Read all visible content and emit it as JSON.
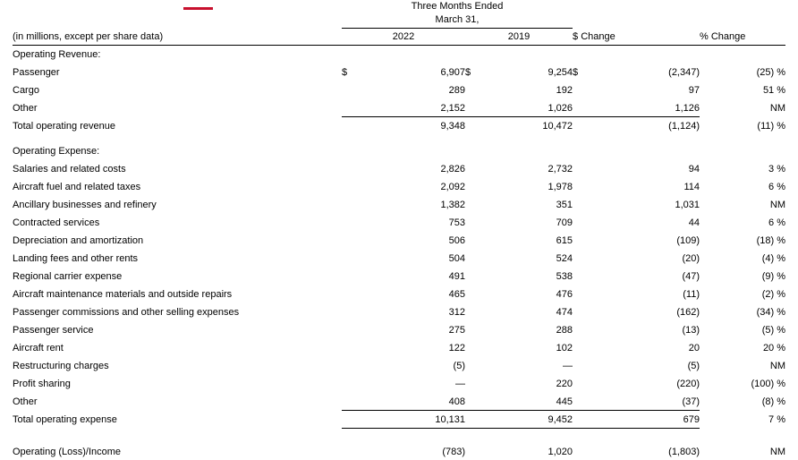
{
  "decor": {
    "accent_color": "#c8102e"
  },
  "table": {
    "currency_symbol": "$",
    "header": {
      "period_line1": "Three Months Ended",
      "period_line2": "March 31,",
      "label_header": "(in millions, except per share data)",
      "col_2022": "2022",
      "col_2019": "2019",
      "col_dollar_change": "$ Change",
      "col_percent_change": "% Change"
    },
    "rows": [
      {
        "label": "Operating Revenue:",
        "indent": 0,
        "section": true
      },
      {
        "label": "Passenger",
        "indent": 1,
        "dollar": true,
        "v2022": "6,907",
        "v2019": "9,254",
        "dchange": "(2,347)",
        "pchange": "(25) %"
      },
      {
        "label": "Cargo",
        "indent": 1,
        "v2022": "289",
        "v2019": "192",
        "dchange": "97",
        "pchange": "51 %"
      },
      {
        "label": "Other",
        "indent": 1,
        "v2022": "2,152",
        "v2019": "1,026",
        "dchange": "1,126",
        "pchange": "NM"
      },
      {
        "label": "Total operating revenue",
        "indent": 2,
        "rule_top": true,
        "v2022": "9,348",
        "v2019": "10,472",
        "dchange": "(1,124)",
        "pchange": "(11) %"
      },
      {
        "spacer": "small"
      },
      {
        "label": "Operating Expense:",
        "indent": 0,
        "section": true
      },
      {
        "label": "Salaries and related costs",
        "indent": 1,
        "v2022": "2,826",
        "v2019": "2,732",
        "dchange": "94",
        "pchange": "3 %"
      },
      {
        "label": "Aircraft fuel and related taxes",
        "indent": 1,
        "v2022": "2,092",
        "v2019": "1,978",
        "dchange": "114",
        "pchange": "6 %"
      },
      {
        "label": "Ancillary businesses and refinery",
        "indent": 1,
        "v2022": "1,382",
        "v2019": "351",
        "dchange": "1,031",
        "pchange": "NM"
      },
      {
        "label": "Contracted services",
        "indent": 1,
        "v2022": "753",
        "v2019": "709",
        "dchange": "44",
        "pchange": "6 %"
      },
      {
        "label": "Depreciation and amortization",
        "indent": 1,
        "v2022": "506",
        "v2019": "615",
        "dchange": "(109)",
        "pchange": "(18) %"
      },
      {
        "label": "Landing fees and other rents",
        "indent": 1,
        "v2022": "504",
        "v2019": "524",
        "dchange": "(20)",
        "pchange": "(4) %"
      },
      {
        "label": "Regional carrier expense",
        "indent": 1,
        "v2022": "491",
        "v2019": "538",
        "dchange": "(47)",
        "pchange": "(9) %"
      },
      {
        "label": "Aircraft maintenance materials and outside repairs",
        "indent": 1,
        "v2022": "465",
        "v2019": "476",
        "dchange": "(11)",
        "pchange": "(2) %"
      },
      {
        "label": "Passenger commissions and other selling expenses",
        "indent": 1,
        "v2022": "312",
        "v2019": "474",
        "dchange": "(162)",
        "pchange": "(34) %"
      },
      {
        "label": "Passenger service",
        "indent": 1,
        "v2022": "275",
        "v2019": "288",
        "dchange": "(13)",
        "pchange": "(5) %"
      },
      {
        "label": "Aircraft rent",
        "indent": 1,
        "v2022": "122",
        "v2019": "102",
        "dchange": "20",
        "pchange": "20 %"
      },
      {
        "label": "Restructuring charges",
        "indent": 1,
        "v2022": "(5)",
        "v2019": "—",
        "dchange": "(5)",
        "pchange": "NM"
      },
      {
        "label": "Profit sharing",
        "indent": 1,
        "v2022": "—",
        "v2019": "220",
        "dchange": "(220)",
        "pchange": "(100) %"
      },
      {
        "label": "Other",
        "indent": 1,
        "v2022": "408",
        "v2019": "445",
        "dchange": "(37)",
        "pchange": "(8) %"
      },
      {
        "label": "Total operating expense",
        "indent": 2,
        "rule_top": true,
        "rule_bottom": true,
        "v2022": "10,131",
        "v2019": "9,452",
        "dchange": "679",
        "pchange": "7 %"
      },
      {
        "spacer": "large"
      },
      {
        "label": "Operating (Loss)/Income",
        "indent": 0,
        "v2022": "(783)",
        "v2019": "1,020",
        "dchange": "(1,803)",
        "pchange": "NM"
      }
    ]
  }
}
